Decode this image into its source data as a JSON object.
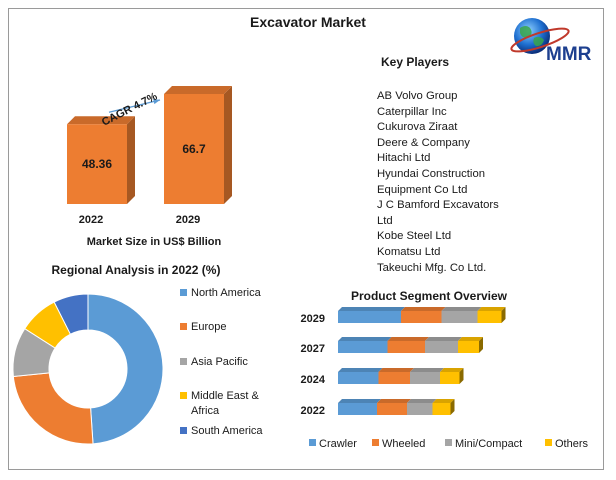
{
  "title": "Excavator Market",
  "brand": "MMR",
  "key_players": {
    "title": "Key Players",
    "items": [
      "AB Volvo Group",
      "Caterpillar Inc",
      "Cukurova Ziraat",
      "Deere & Company",
      "Hitachi Ltd",
      "Hyundai Construction",
      "Equipment Co Ltd",
      "J C Bamford Excavators",
      "Ltd",
      "Kobe Steel Ltd",
      "Komatsu Ltd",
      "Takeuchi Mfg. Co Ltd."
    ]
  },
  "colors": {
    "orange": "#ed7d31",
    "blue": "#5b9bd5",
    "gray": "#a5a5a5",
    "yellow": "#ffc000",
    "navy": "#4472c4",
    "cagr_arrow": "#5b9bd5"
  },
  "chart_data": [
    {
      "type": "bar",
      "categories": [
        "2022",
        "2029"
      ],
      "values": [
        48.36,
        66.7
      ],
      "value_labels": [
        "48.36",
        "66.7"
      ],
      "xlabel": "Market Size in US$ Billion",
      "annotation": "CAGR 4.7%",
      "style": "3d-column"
    },
    {
      "type": "pie",
      "style": "donut",
      "title": "Regional Analysis in 2022 (%)",
      "legend_position": "right",
      "categories": [
        "North America",
        "Europe",
        "Asia Pacific",
        "Middle East & Africa",
        "South America"
      ],
      "legend_lines": [
        [
          "North America"
        ],
        [
          "Europe"
        ],
        [
          "Asia Pacific"
        ],
        [
          "Middle East &",
          "Africa"
        ],
        [
          "South America"
        ]
      ],
      "values": [
        46,
        23,
        10,
        8,
        7
      ],
      "colors": [
        "#5b9bd5",
        "#ed7d31",
        "#a5a5a5",
        "#ffc000",
        "#4472c4"
      ]
    },
    {
      "type": "bar",
      "orientation": "horizontal",
      "stacked": true,
      "title": "Product Segment Overview",
      "legend_position": "bottom",
      "categories": [
        "2029",
        "2027",
        "2024",
        "2022"
      ],
      "series": [
        {
          "name": "Crawler",
          "values": [
            42,
            33,
            27,
            26
          ],
          "color": "#5b9bd5"
        },
        {
          "name": "Wheeled",
          "values": [
            27,
            25,
            21,
            20
          ],
          "color": "#ed7d31"
        },
        {
          "name": "Mini/Compact",
          "values": [
            24,
            22,
            20,
            17
          ],
          "color": "#a5a5a5"
        },
        {
          "name": "Others",
          "values": [
            16,
            14,
            13,
            12
          ],
          "color": "#ffc000"
        }
      ]
    }
  ]
}
